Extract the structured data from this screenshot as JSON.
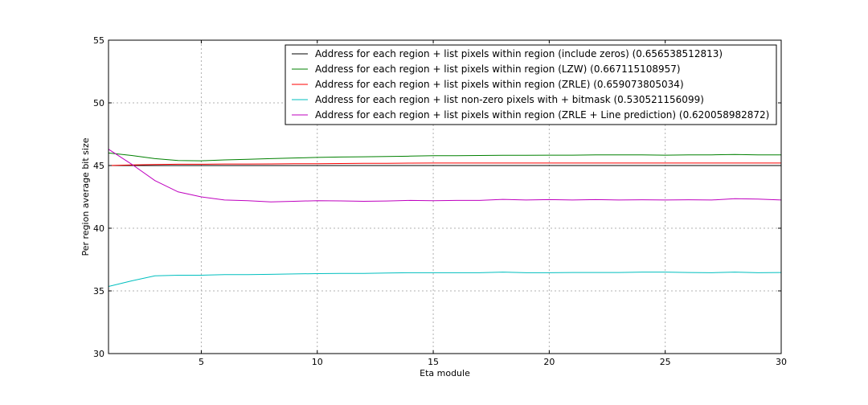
{
  "chart_data": {
    "type": "line",
    "title": "",
    "xlabel": "Eta module",
    "ylabel": "Per region average bit size",
    "xlim": [
      1,
      30
    ],
    "ylim": [
      30,
      55
    ],
    "xticks": [
      5,
      10,
      15,
      20,
      25,
      30
    ],
    "yticks": [
      30,
      35,
      40,
      45,
      50,
      55
    ],
    "grid": true,
    "legend_position": "top-right",
    "x": [
      1,
      2,
      3,
      4,
      5,
      6,
      7,
      8,
      9,
      10,
      11,
      12,
      13,
      14,
      15,
      16,
      17,
      18,
      19,
      20,
      21,
      22,
      23,
      24,
      25,
      26,
      27,
      28,
      29,
      30
    ],
    "series": [
      {
        "name": "Address for each region + list pixels within region (include zeros) (0.656538512813)",
        "color": "#000000",
        "values": [
          45.0,
          45.0,
          45.0,
          45.0,
          45.0,
          45.0,
          45.0,
          45.0,
          45.0,
          45.0,
          45.0,
          45.0,
          45.0,
          45.0,
          45.0,
          45.0,
          45.0,
          45.0,
          45.0,
          45.0,
          45.0,
          45.0,
          45.0,
          45.0,
          45.0,
          45.0,
          45.0,
          45.0,
          45.0,
          45.0
        ]
      },
      {
        "name": "Address for each region + list pixels within region (LZW) (0.667115108957)",
        "color": "#008000",
        "values": [
          46.0,
          45.8,
          45.55,
          45.4,
          45.38,
          45.45,
          45.5,
          45.55,
          45.6,
          45.65,
          45.68,
          45.7,
          45.72,
          45.75,
          45.78,
          45.78,
          45.8,
          45.82,
          45.82,
          45.83,
          45.83,
          45.85,
          45.85,
          45.85,
          45.83,
          45.85,
          45.85,
          45.88,
          45.85,
          45.85
        ]
      },
      {
        "name": "Address for each region + list pixels within region (ZRLE) (0.659073805034)",
        "color": "#ff0000",
        "values": [
          45.0,
          45.05,
          45.08,
          45.1,
          45.1,
          45.12,
          45.12,
          45.13,
          45.14,
          45.15,
          45.16,
          45.17,
          45.18,
          45.19,
          45.2,
          45.2,
          45.2,
          45.2,
          45.2,
          45.2,
          45.2,
          45.2,
          45.2,
          45.2,
          45.2,
          45.2,
          45.2,
          45.2,
          45.2,
          45.2
        ]
      },
      {
        "name": "Address for each region + list non-zero pixels with + bitmask (0.530521156099)",
        "color": "#00bfbf",
        "values": [
          35.35,
          35.8,
          36.2,
          36.25,
          36.25,
          36.3,
          36.3,
          36.32,
          36.35,
          36.38,
          36.4,
          36.4,
          36.42,
          36.45,
          36.45,
          36.45,
          36.45,
          36.5,
          36.45,
          36.45,
          36.47,
          36.47,
          36.47,
          36.5,
          36.5,
          36.47,
          36.45,
          36.5,
          36.45,
          36.47
        ]
      },
      {
        "name": "Address for each region + list pixels within region (ZRLE + Line prediction) (0.620058982872)",
        "color": "#bf00bf",
        "values": [
          46.3,
          45.1,
          43.8,
          42.9,
          42.5,
          42.25,
          42.2,
          42.1,
          42.15,
          42.2,
          42.18,
          42.15,
          42.17,
          42.22,
          42.2,
          42.22,
          42.22,
          42.3,
          42.25,
          42.28,
          42.25,
          42.28,
          42.25,
          42.27,
          42.25,
          42.27,
          42.25,
          42.35,
          42.33,
          42.25
        ]
      }
    ]
  }
}
